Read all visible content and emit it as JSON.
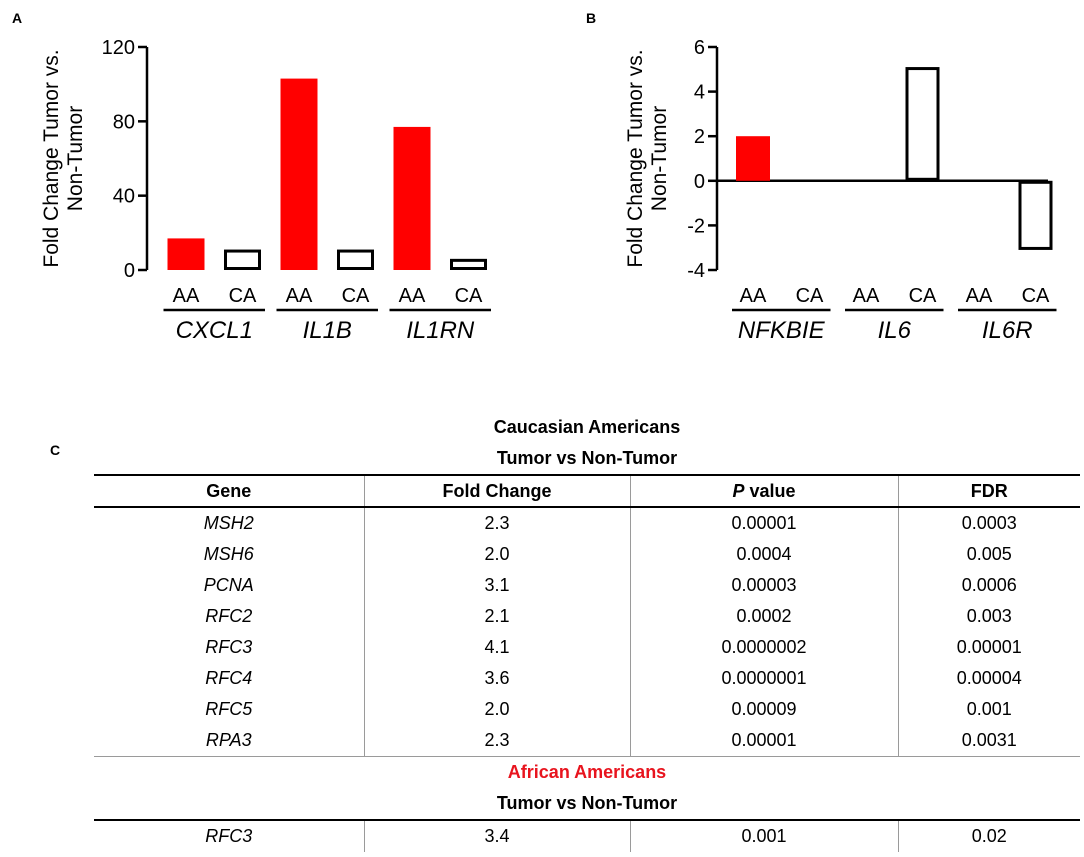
{
  "panels": {
    "a": "A",
    "b": "B",
    "c": "C"
  },
  "chart_data": [
    {
      "type": "bar",
      "panel": "A",
      "ylabel": "Fold Change Tumor vs. Non-Tumor",
      "ylim": [
        0,
        120
      ],
      "yticks": [
        0,
        40,
        80,
        120
      ],
      "groups": [
        "CXCL1",
        "IL1B",
        "IL1RN"
      ],
      "bars": [
        {
          "group": "CXCL1",
          "label": "AA",
          "value": 17,
          "fill": "#ff0000"
        },
        {
          "group": "CXCL1",
          "label": "CA",
          "value": 11,
          "fill": "#ffffff"
        },
        {
          "group": "IL1B",
          "label": "AA",
          "value": 103,
          "fill": "#ff0000"
        },
        {
          "group": "IL1B",
          "label": "CA",
          "value": 11,
          "fill": "#ffffff"
        },
        {
          "group": "IL1RN",
          "label": "AA",
          "value": 77,
          "fill": "#ff0000"
        },
        {
          "group": "IL1RN",
          "label": "CA",
          "value": 6,
          "fill": "#ffffff"
        }
      ]
    },
    {
      "type": "bar",
      "panel": "B",
      "ylabel": "Fold Change Tumor vs. Non-Tumor",
      "ylim": [
        -4,
        6
      ],
      "yticks": [
        -4,
        -2,
        0,
        2,
        4,
        6
      ],
      "groups": [
        "NFKBIE",
        "IL6",
        "IL6R"
      ],
      "bars": [
        {
          "group": "NFKBIE",
          "label": "AA",
          "value": 2.0,
          "fill": "#ff0000"
        },
        {
          "group": "NFKBIE",
          "label": "CA",
          "value": 0,
          "fill": "#ffffff"
        },
        {
          "group": "IL6",
          "label": "AA",
          "value": 0,
          "fill": "#ff0000"
        },
        {
          "group": "IL6",
          "label": "CA",
          "value": 5.1,
          "fill": "#ffffff"
        },
        {
          "group": "IL6R",
          "label": "AA",
          "value": 0,
          "fill": "#ff0000"
        },
        {
          "group": "IL6R",
          "label": "CA",
          "value": -3.1,
          "fill": "#ffffff"
        }
      ]
    }
  ],
  "table": {
    "title": "Caucasian Americans",
    "subtitle": "Tumor vs Non-Tumor",
    "headers": {
      "gene": "Gene",
      "fold": "Fold Change",
      "p_italic": "P",
      "p_rest": " value",
      "fdr": "FDR"
    },
    "rows": [
      [
        "MSH2",
        "2.3",
        "0.00001",
        "0.0003"
      ],
      [
        "MSH6",
        "2.0",
        "0.0004",
        "0.005"
      ],
      [
        "PCNA",
        "3.1",
        "0.00003",
        "0.0006"
      ],
      [
        "RFC2",
        "2.1",
        "0.0002",
        "0.003"
      ],
      [
        "RFC3",
        "4.1",
        "0.0000002",
        "0.00001"
      ],
      [
        "RFC4",
        "3.6",
        "0.0000001",
        "0.00004"
      ],
      [
        "RFC5",
        "2.0",
        "0.00009",
        "0.001"
      ],
      [
        "RPA3",
        "2.3",
        "0.00001",
        "0.0031"
      ]
    ],
    "aa_title": "African Americans",
    "aa_subtitle": "Tumor vs Non-Tumor",
    "aa_rows": [
      [
        "RFC3",
        "3.4",
        "0.001",
        "0.02"
      ]
    ],
    "colors": {
      "aa_title": "#e8141e"
    }
  }
}
